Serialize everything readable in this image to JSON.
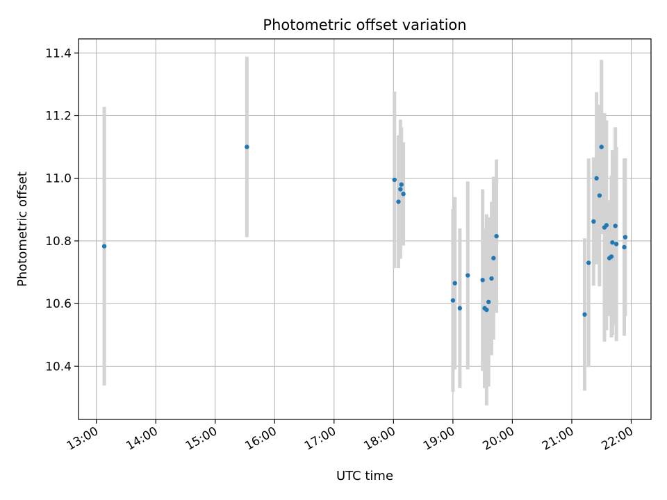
{
  "chart_data": {
    "type": "scatter",
    "title": "Photometric offset variation",
    "xlabel": "UTC time",
    "ylabel": "Photometric offset",
    "xlim": [
      "12:42",
      "22:20"
    ],
    "ylim": [
      10.23,
      11.445
    ],
    "x_ticks": [
      "13:00",
      "14:00",
      "15:00",
      "16:00",
      "17:00",
      "18:00",
      "19:00",
      "20:00",
      "21:00",
      "22:00"
    ],
    "y_ticks": [
      10.4,
      10.6,
      10.8,
      11.0,
      11.2,
      11.4
    ],
    "y_tick_labels": [
      "10.4",
      "10.6",
      "10.8",
      "11.0",
      "11.2",
      "11.4"
    ],
    "grid": true,
    "error_bar_color": "#d3d3d3",
    "point_color": "#1f77b4",
    "points": [
      {
        "x": "13:08",
        "y": 10.783,
        "err": 0.445
      },
      {
        "x": "15:32",
        "y": 11.1,
        "err": 0.288
      },
      {
        "x": "18:01",
        "y": 10.995,
        "err": 0.282
      },
      {
        "x": "18:05",
        "y": 10.925,
        "err": 0.212
      },
      {
        "x": "18:07",
        "y": 10.965,
        "err": 0.222
      },
      {
        "x": "18:08",
        "y": 10.98,
        "err": 0.183
      },
      {
        "x": "18:10",
        "y": 10.95,
        "err": 0.165
      },
      {
        "x": "19:00",
        "y": 10.61,
        "err": 0.292
      },
      {
        "x": "19:02",
        "y": 10.665,
        "err": 0.275
      },
      {
        "x": "19:07",
        "y": 10.585,
        "err": 0.255
      },
      {
        "x": "19:15",
        "y": 10.69,
        "err": 0.3
      },
      {
        "x": "19:30",
        "y": 10.675,
        "err": 0.29
      },
      {
        "x": "19:32",
        "y": 10.585,
        "err": 0.255
      },
      {
        "x": "19:34",
        "y": 10.58,
        "err": 0.305
      },
      {
        "x": "19:36",
        "y": 10.605,
        "err": 0.27
      },
      {
        "x": "19:39",
        "y": 10.68,
        "err": 0.245
      },
      {
        "x": "19:41",
        "y": 10.745,
        "err": 0.26
      },
      {
        "x": "19:44",
        "y": 10.815,
        "err": 0.245
      },
      {
        "x": "21:13",
        "y": 10.565,
        "err": 0.243
      },
      {
        "x": "21:17",
        "y": 10.73,
        "err": 0.333
      },
      {
        "x": "21:22",
        "y": 10.862,
        "err": 0.205
      },
      {
        "x": "21:25",
        "y": 11.0,
        "err": 0.275
      },
      {
        "x": "21:28",
        "y": 10.945,
        "err": 0.29
      },
      {
        "x": "21:30",
        "y": 11.1,
        "err": 0.278
      },
      {
        "x": "21:33",
        "y": 10.843,
        "err": 0.365
      },
      {
        "x": "21:35",
        "y": 10.85,
        "err": 0.335
      },
      {
        "x": "21:38",
        "y": 10.745,
        "err": 0.185
      },
      {
        "x": "21:40",
        "y": 10.75,
        "err": 0.258
      },
      {
        "x": "21:41",
        "y": 10.795,
        "err": 0.295
      },
      {
        "x": "21:44",
        "y": 10.848,
        "err": 0.315
      },
      {
        "x": "21:45",
        "y": 10.79,
        "err": 0.31
      },
      {
        "x": "21:53",
        "y": 10.78,
        "err": 0.283
      },
      {
        "x": "21:54",
        "y": 10.812,
        "err": 0.252
      }
    ]
  }
}
